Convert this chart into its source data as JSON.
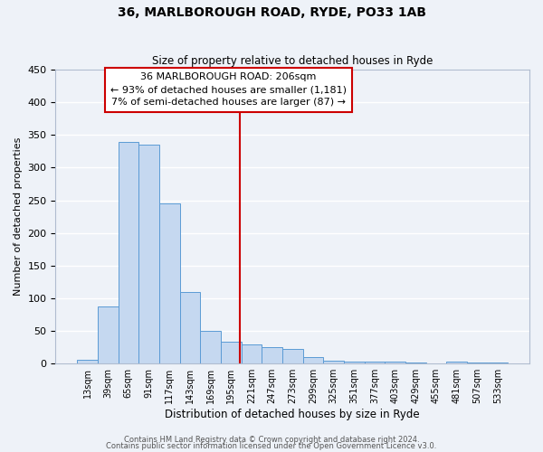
{
  "title": "36, MARLBOROUGH ROAD, RYDE, PO33 1AB",
  "subtitle": "Size of property relative to detached houses in Ryde",
  "xlabel": "Distribution of detached houses by size in Ryde",
  "ylabel": "Number of detached properties",
  "bar_labels": [
    "13sqm",
    "39sqm",
    "65sqm",
    "91sqm",
    "117sqm",
    "143sqm",
    "169sqm",
    "195sqm",
    "221sqm",
    "247sqm",
    "273sqm",
    "299sqm",
    "325sqm",
    "351sqm",
    "377sqm",
    "403sqm",
    "429sqm",
    "455sqm",
    "481sqm",
    "507sqm",
    "533sqm"
  ],
  "bar_values": [
    6,
    88,
    340,
    335,
    245,
    110,
    50,
    33,
    30,
    25,
    22,
    10,
    5,
    3,
    3,
    3,
    2,
    0,
    3,
    1,
    1
  ],
  "bar_color": "#c5d8f0",
  "bar_edge_color": "#5b9bd5",
  "ylim": [
    0,
    450
  ],
  "yticks": [
    0,
    50,
    100,
    150,
    200,
    250,
    300,
    350,
    400,
    450
  ],
  "vline_x": 7.42,
  "vline_color": "#cc0000",
  "annotation_text": "36 MARLBOROUGH ROAD: 206sqm\n← 93% of detached houses are smaller (1,181)\n7% of semi-detached houses are larger (87) →",
  "bg_color": "#eef2f8",
  "grid_color": "#ffffff",
  "footer_line1": "Contains HM Land Registry data © Crown copyright and database right 2024.",
  "footer_line2": "Contains public sector information licensed under the Open Government Licence v3.0."
}
